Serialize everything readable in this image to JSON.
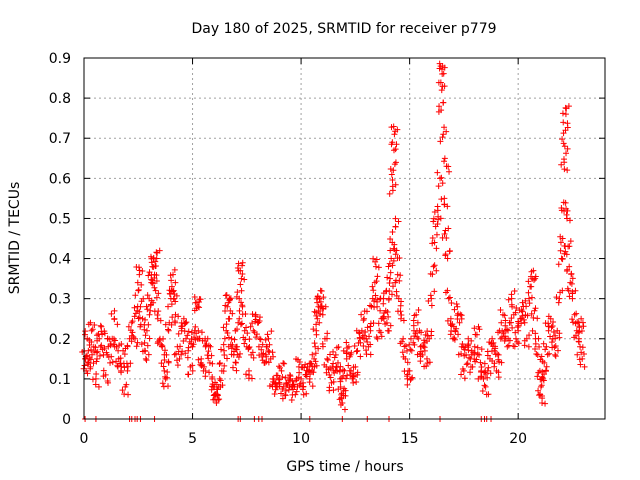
{
  "chart_data": {
    "type": "scatter",
    "title": "Day 180 of 2025, SRMTID for receiver p779",
    "xlabel": "GPS time / hours",
    "ylabel": "SRMTID / TECUs",
    "xlim": [
      0,
      24
    ],
    "ylim": [
      0,
      0.9
    ],
    "x_ticks": [
      0,
      5,
      10,
      15,
      20
    ],
    "y_ticks": [
      0,
      0.1,
      0.2,
      0.3,
      0.4,
      0.5,
      0.6,
      0.7,
      0.8,
      0.9
    ],
    "x_tick_labels": [
      "0",
      "5",
      "10",
      "15",
      "20"
    ],
    "y_tick_labels": [
      "0",
      "0.1",
      "0.2",
      "0.3",
      "0.4",
      "0.5",
      "0.6",
      "0.7",
      "0.8",
      "0.9"
    ],
    "grid": true,
    "marker": "+",
    "color": "#ff0000",
    "series": [
      {
        "name": "SRMTID",
        "points": [
          [
            0.05,
            0.15
          ],
          [
            0.1,
            0.12
          ],
          [
            0.15,
            0.2
          ],
          [
            0.2,
            0.17
          ],
          [
            0.3,
            0.13
          ],
          [
            0.35,
            0.22
          ],
          [
            0.45,
            0.18
          ],
          [
            0.55,
            0.1
          ],
          [
            0.6,
            0.15
          ],
          [
            0.7,
            0.2
          ],
          [
            0.8,
            0.23
          ],
          [
            0.9,
            0.16
          ],
          [
            1.0,
            0.11
          ],
          [
            1.1,
            0.2
          ],
          [
            1.2,
            0.14
          ],
          [
            1.3,
            0.2
          ],
          [
            1.4,
            0.25
          ],
          [
            1.5,
            0.18
          ],
          [
            1.6,
            0.15
          ],
          [
            1.7,
            0.12
          ],
          [
            1.8,
            0.17
          ],
          [
            1.9,
            0.08
          ],
          [
            2.0,
            0.12
          ],
          [
            2.1,
            0.2
          ],
          [
            2.2,
            0.24
          ],
          [
            2.35,
            0.2
          ],
          [
            2.45,
            0.27
          ],
          [
            2.5,
            0.32
          ],
          [
            2.55,
            0.36
          ],
          [
            2.6,
            0.28
          ],
          [
            2.7,
            0.25
          ],
          [
            2.8,
            0.17
          ],
          [
            2.85,
            0.15
          ],
          [
            2.9,
            0.22
          ],
          [
            3.0,
            0.3
          ],
          [
            3.05,
            0.27
          ],
          [
            3.1,
            0.34
          ],
          [
            3.15,
            0.38
          ],
          [
            3.2,
            0.4
          ],
          [
            3.25,
            0.36
          ],
          [
            3.3,
            0.32
          ],
          [
            3.35,
            0.4
          ],
          [
            3.4,
            0.25
          ],
          [
            3.5,
            0.2
          ],
          [
            3.6,
            0.18
          ],
          [
            3.7,
            0.12
          ],
          [
            3.75,
            0.1
          ],
          [
            3.8,
            0.16
          ],
          [
            3.9,
            0.22
          ],
          [
            4.0,
            0.3
          ],
          [
            4.05,
            0.33
          ],
          [
            4.1,
            0.36
          ],
          [
            4.15,
            0.3
          ],
          [
            4.2,
            0.24
          ],
          [
            4.3,
            0.18
          ],
          [
            4.4,
            0.15
          ],
          [
            4.5,
            0.22
          ],
          [
            4.6,
            0.25
          ],
          [
            4.7,
            0.2
          ],
          [
            4.8,
            0.17
          ],
          [
            4.9,
            0.13
          ],
          [
            5.0,
            0.18
          ],
          [
            5.1,
            0.22
          ],
          [
            5.2,
            0.29
          ],
          [
            5.25,
            0.28
          ],
          [
            5.3,
            0.2
          ],
          [
            5.4,
            0.15
          ],
          [
            5.5,
            0.12
          ],
          [
            5.6,
            0.18
          ],
          [
            5.7,
            0.2
          ],
          [
            5.8,
            0.14
          ],
          [
            5.9,
            0.1
          ],
          [
            6.0,
            0.08
          ],
          [
            6.05,
            0.06
          ],
          [
            6.1,
            0.04
          ],
          [
            6.15,
            0.06
          ],
          [
            6.25,
            0.1
          ],
          [
            6.35,
            0.12
          ],
          [
            6.45,
            0.17
          ],
          [
            6.55,
            0.22
          ],
          [
            6.6,
            0.28
          ],
          [
            6.65,
            0.29
          ],
          [
            6.7,
            0.25
          ],
          [
            6.8,
            0.2
          ],
          [
            6.9,
            0.16
          ],
          [
            7.0,
            0.14
          ],
          [
            7.05,
            0.18
          ],
          [
            7.1,
            0.24
          ],
          [
            7.15,
            0.3
          ],
          [
            7.2,
            0.37
          ],
          [
            7.25,
            0.35
          ],
          [
            7.3,
            0.28
          ],
          [
            7.4,
            0.22
          ],
          [
            7.5,
            0.18
          ],
          [
            7.6,
            0.12
          ],
          [
            7.7,
            0.16
          ],
          [
            7.8,
            0.22
          ],
          [
            7.9,
            0.26
          ],
          [
            8.0,
            0.24
          ],
          [
            8.1,
            0.2
          ],
          [
            8.2,
            0.16
          ],
          [
            8.3,
            0.14
          ],
          [
            8.4,
            0.18
          ],
          [
            8.5,
            0.2
          ],
          [
            8.6,
            0.15
          ],
          [
            8.7,
            0.1
          ],
          [
            8.8,
            0.09
          ],
          [
            8.9,
            0.08
          ],
          [
            9.0,
            0.1
          ],
          [
            9.1,
            0.12
          ],
          [
            9.2,
            0.08
          ],
          [
            9.3,
            0.07
          ],
          [
            9.4,
            0.09
          ],
          [
            9.5,
            0.1
          ],
          [
            9.6,
            0.06
          ],
          [
            9.7,
            0.08
          ],
          [
            9.8,
            0.1
          ],
          [
            9.9,
            0.13
          ],
          [
            10.0,
            0.1
          ],
          [
            10.1,
            0.08
          ],
          [
            10.2,
            0.11
          ],
          [
            10.3,
            0.13
          ],
          [
            10.4,
            0.1
          ],
          [
            10.5,
            0.12
          ],
          [
            10.6,
            0.15
          ],
          [
            10.65,
            0.18
          ],
          [
            10.7,
            0.22
          ],
          [
            10.75,
            0.25
          ],
          [
            10.8,
            0.28
          ],
          [
            10.85,
            0.3
          ],
          [
            10.9,
            0.32
          ],
          [
            11.0,
            0.26
          ],
          [
            11.1,
            0.2
          ],
          [
            11.2,
            0.15
          ],
          [
            11.3,
            0.11
          ],
          [
            11.4,
            0.09
          ],
          [
            11.5,
            0.12
          ],
          [
            11.6,
            0.16
          ],
          [
            11.7,
            0.14
          ],
          [
            11.8,
            0.1
          ],
          [
            11.85,
            0.06
          ],
          [
            11.9,
            0.04
          ],
          [
            11.95,
            0.07
          ],
          [
            12.0,
            0.12
          ],
          [
            12.1,
            0.15
          ],
          [
            12.2,
            0.18
          ],
          [
            12.3,
            0.12
          ],
          [
            12.4,
            0.09
          ],
          [
            12.5,
            0.13
          ],
          [
            12.6,
            0.17
          ],
          [
            12.7,
            0.2
          ],
          [
            12.8,
            0.22
          ],
          [
            12.9,
            0.25
          ],
          [
            13.0,
            0.2
          ],
          [
            13.1,
            0.18
          ],
          [
            13.2,
            0.22
          ],
          [
            13.3,
            0.3
          ],
          [
            13.4,
            0.34
          ],
          [
            13.45,
            0.38
          ],
          [
            13.5,
            0.28
          ],
          [
            13.6,
            0.22
          ],
          [
            13.7,
            0.25
          ],
          [
            13.8,
            0.3
          ],
          [
            13.9,
            0.27
          ],
          [
            14.0,
            0.22
          ],
          [
            14.05,
            0.3
          ],
          [
            14.1,
            0.35
          ],
          [
            14.15,
            0.4
          ],
          [
            14.2,
            0.44
          ],
          [
            14.22,
            0.58
          ],
          [
            14.25,
            0.62
          ],
          [
            14.28,
            0.67
          ],
          [
            14.3,
            0.71
          ],
          [
            14.35,
            0.48
          ],
          [
            14.4,
            0.42
          ],
          [
            14.45,
            0.36
          ],
          [
            14.5,
            0.3
          ],
          [
            14.6,
            0.25
          ],
          [
            14.7,
            0.2
          ],
          [
            14.8,
            0.15
          ],
          [
            14.9,
            0.1
          ],
          [
            15.0,
            0.12
          ],
          [
            15.1,
            0.17
          ],
          [
            15.2,
            0.22
          ],
          [
            15.3,
            0.26
          ],
          [
            15.4,
            0.2
          ],
          [
            15.5,
            0.18
          ],
          [
            15.6,
            0.16
          ],
          [
            15.7,
            0.19
          ],
          [
            15.8,
            0.15
          ],
          [
            15.9,
            0.2
          ],
          [
            16.0,
            0.3
          ],
          [
            16.1,
            0.38
          ],
          [
            16.15,
            0.44
          ],
          [
            16.2,
            0.48
          ],
          [
            16.3,
            0.52
          ],
          [
            16.4,
            0.6
          ],
          [
            16.45,
            0.77
          ],
          [
            16.48,
            0.82
          ],
          [
            16.5,
            0.86
          ],
          [
            16.52,
            0.88
          ],
          [
            16.55,
            0.71
          ],
          [
            16.6,
            0.55
          ],
          [
            16.65,
            0.47
          ],
          [
            16.7,
            0.63
          ],
          [
            16.75,
            0.4
          ],
          [
            16.8,
            0.3
          ],
          [
            16.9,
            0.25
          ],
          [
            17.0,
            0.2
          ],
          [
            17.1,
            0.22
          ],
          [
            17.2,
            0.28
          ],
          [
            17.3,
            0.24
          ],
          [
            17.4,
            0.18
          ],
          [
            17.5,
            0.12
          ],
          [
            17.6,
            0.16
          ],
          [
            17.7,
            0.2
          ],
          [
            17.8,
            0.15
          ],
          [
            17.9,
            0.13
          ],
          [
            18.0,
            0.18
          ],
          [
            18.1,
            0.21
          ],
          [
            18.2,
            0.16
          ],
          [
            18.3,
            0.12
          ],
          [
            18.4,
            0.1
          ],
          [
            18.5,
            0.08
          ],
          [
            18.6,
            0.12
          ],
          [
            18.7,
            0.15
          ],
          [
            18.8,
            0.2
          ],
          [
            18.9,
            0.17
          ],
          [
            19.0,
            0.12
          ],
          [
            19.1,
            0.16
          ],
          [
            19.2,
            0.2
          ],
          [
            19.3,
            0.26
          ],
          [
            19.4,
            0.22
          ],
          [
            19.5,
            0.18
          ],
          [
            19.6,
            0.24
          ],
          [
            19.7,
            0.3
          ],
          [
            19.8,
            0.26
          ],
          [
            19.9,
            0.2
          ],
          [
            20.0,
            0.22
          ],
          [
            20.1,
            0.25
          ],
          [
            20.2,
            0.29
          ],
          [
            20.3,
            0.24
          ],
          [
            20.4,
            0.2
          ],
          [
            20.5,
            0.3
          ],
          [
            20.6,
            0.33
          ],
          [
            20.7,
            0.37
          ],
          [
            20.75,
            0.27
          ],
          [
            20.8,
            0.2
          ],
          [
            20.9,
            0.16
          ],
          [
            21.0,
            0.12
          ],
          [
            21.05,
            0.08
          ],
          [
            21.1,
            0.04
          ],
          [
            21.15,
            0.1
          ],
          [
            21.2,
            0.14
          ],
          [
            21.3,
            0.18
          ],
          [
            21.4,
            0.22
          ],
          [
            21.5,
            0.25
          ],
          [
            21.6,
            0.2
          ],
          [
            21.7,
            0.16
          ],
          [
            21.8,
            0.22
          ],
          [
            21.9,
            0.3
          ],
          [
            22.0,
            0.4
          ],
          [
            22.05,
            0.45
          ],
          [
            22.1,
            0.54
          ],
          [
            22.12,
            0.64
          ],
          [
            22.15,
            0.68
          ],
          [
            22.18,
            0.72
          ],
          [
            22.2,
            0.76
          ],
          [
            22.25,
            0.5
          ],
          [
            22.3,
            0.43
          ],
          [
            22.35,
            0.38
          ],
          [
            22.4,
            0.34
          ],
          [
            22.5,
            0.3
          ],
          [
            22.6,
            0.26
          ],
          [
            22.7,
            0.22
          ],
          [
            22.8,
            0.2
          ],
          [
            22.85,
            0.18
          ],
          [
            22.9,
            0.25
          ],
          [
            22.95,
            0.15
          ]
        ],
        "baseline_points": [
          0.05,
          0.55,
          2.1,
          2.2,
          2.35,
          2.45,
          2.6,
          3.25,
          7.1,
          7.2,
          7.85,
          8.05,
          8.2,
          10.4,
          11.9,
          13.05,
          14.05,
          16.4,
          18.3,
          18.45,
          18.55,
          18.75
        ]
      }
    ]
  }
}
